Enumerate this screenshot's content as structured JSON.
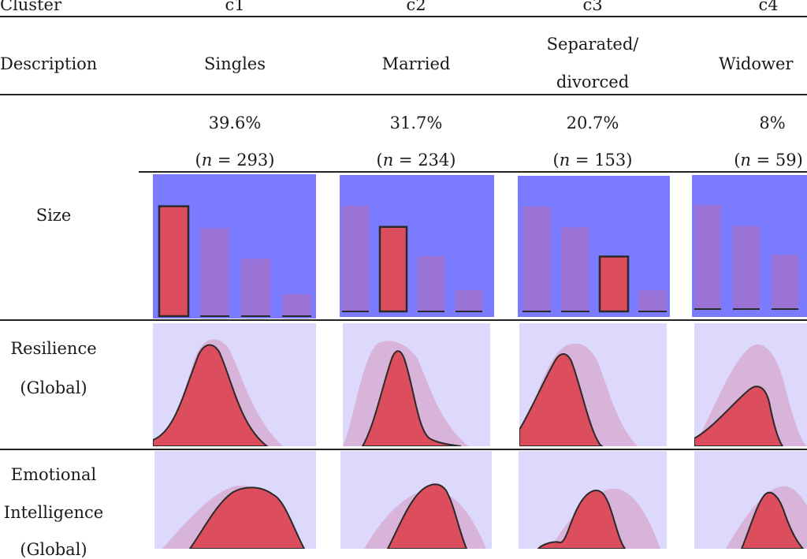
{
  "table": {
    "header": {
      "cluster_label": "Cluster",
      "description_label": "Description"
    },
    "row_labels": {
      "size": "Size",
      "resilience_line1": "Resilience",
      "resilience_line2": "(Global)",
      "emotional_line1": "Emotional",
      "emotional_line2": "Intelligence",
      "emotional_line3": "(Global)"
    },
    "clusters": [
      {
        "id": "c1",
        "description_line1": "Singles",
        "description_line2": "",
        "percent": "39.6%",
        "n_prefix": "(",
        "n_symbol": "n",
        "n_value": " = 293)"
      },
      {
        "id": "c2",
        "description_line1": "Married",
        "description_line2": "",
        "percent": "31.7%",
        "n_prefix": "(",
        "n_symbol": "n",
        "n_value": " = 234)"
      },
      {
        "id": "c3",
        "description_line1": "Separated/",
        "description_line2": "divorced",
        "percent": "20.7%",
        "n_prefix": "(",
        "n_symbol": "n",
        "n_value": " = 153)"
      },
      {
        "id": "c4",
        "description_line1": "Widower",
        "description_line2": "",
        "percent": "8%",
        "n_prefix": "(",
        "n_symbol": "n",
        "n_value": " = 59)"
      }
    ]
  },
  "chart_data": {
    "type": "bar",
    "title": "Size",
    "categories": [
      "c1",
      "c2",
      "c3",
      "c4"
    ],
    "values": [
      39.6,
      31.7,
      20.7,
      8
    ],
    "counts": [
      293,
      234,
      153,
      59
    ],
    "ylim": [
      0,
      50
    ]
  },
  "colors": {
    "bar_panel_bg": "#7b7bff",
    "ghost_bar": "#9a72d6",
    "highlight_bar": "#dc4e5d",
    "density_panel_bg": "#dcd9fc",
    "ghost_density": "#d8b3da",
    "density_fill": "#dc4e5d",
    "stroke": "#2a2a2a"
  }
}
